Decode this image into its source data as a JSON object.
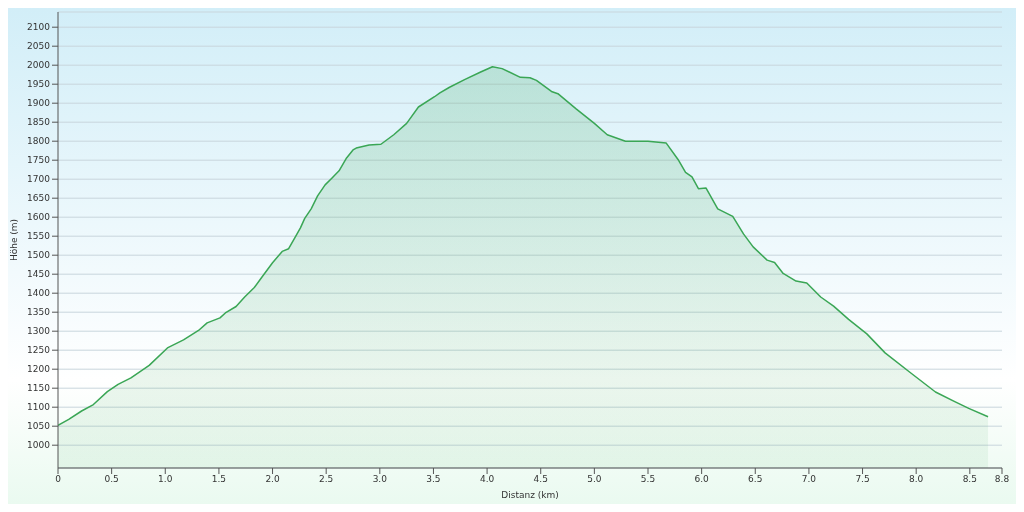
{
  "chart_data": {
    "type": "area",
    "xlabel": "Distanz  (km)",
    "ylabel": "Höhe (m)",
    "x": [
      0,
      0.1,
      0.22,
      0.33,
      0.46,
      0.56,
      0.68,
      0.85,
      1.02,
      1.17,
      1.31,
      1.39,
      1.51,
      1.56,
      1.66,
      1.74,
      1.83,
      1.9,
      2.0,
      2.09,
      2.15,
      2.21,
      2.26,
      2.3,
      2.36,
      2.42,
      2.49,
      2.55,
      2.62,
      2.69,
      2.75,
      2.78,
      2.9,
      3.01,
      3.13,
      3.25,
      3.36,
      3.51,
      3.56,
      3.65,
      3.79,
      3.94,
      4.05,
      4.14,
      4.31,
      4.4,
      4.46,
      4.6,
      4.66,
      4.83,
      5.0,
      5.12,
      5.29,
      5.5,
      5.67,
      5.78,
      5.85,
      5.91,
      5.97,
      6.04,
      6.15,
      6.29,
      6.39,
      6.48,
      6.61,
      6.68,
      6.76,
      6.88,
      6.98,
      7.11,
      7.23,
      7.37,
      7.54,
      7.71,
      7.95,
      8.18,
      8.35,
      8.49,
      8.67
    ],
    "series": [
      {
        "color": "#3aa655",
        "values": [
          1052,
          1068,
          1090,
          1107,
          1141,
          1160,
          1177,
          1210,
          1256,
          1277,
          1302,
          1322,
          1335,
          1348,
          1365,
          1390,
          1415,
          1442,
          1480,
          1510,
          1517,
          1547,
          1572,
          1597,
          1622,
          1656,
          1685,
          1702,
          1722,
          1756,
          1777,
          1782,
          1790,
          1792,
          1817,
          1847,
          1890,
          1917,
          1927,
          1942,
          1962,
          1982,
          1996,
          1991,
          1968,
          1967,
          1960,
          1931,
          1925,
          1885,
          1847,
          1817,
          1800,
          1800,
          1795,
          1752,
          1718,
          1706,
          1675,
          1677,
          1622,
          1602,
          1556,
          1522,
          1487,
          1481,
          1452,
          1432,
          1427,
          1390,
          1366,
          1331,
          1293,
          1243,
          1190,
          1140,
          1116,
          1097,
          1075
        ]
      }
    ],
    "xlim": [
      0,
      8.8
    ],
    "xticks": [
      0,
      {
        "value": 0.5,
        "label": "0.5"
      },
      {
        "value": 1,
        "label": "1.0"
      },
      {
        "value": 1.5,
        "label": "1.5"
      },
      {
        "value": 2,
        "label": "2.0"
      },
      {
        "value": 2.5,
        "label": "2.5"
      },
      {
        "value": 3,
        "label": "3.0"
      },
      {
        "value": 3.5,
        "label": "3.5"
      },
      {
        "value": 4,
        "label": "4.0"
      },
      {
        "value": 4.5,
        "label": "4.5"
      },
      {
        "value": 5,
        "label": "5.0"
      },
      {
        "value": 5.5,
        "label": "5.5"
      },
      {
        "value": 6,
        "label": "6.0"
      },
      {
        "value": 6.5,
        "label": "6.5"
      },
      {
        "value": 7,
        "label": "7.0"
      },
      {
        "value": 7.5,
        "label": "7.5"
      },
      {
        "value": 8,
        "label": "8.0"
      },
      {
        "value": 8.5,
        "label": "8.5"
      },
      8.8
    ],
    "ylim": [
      940,
      2140
    ],
    "yticks": [
      1000,
      1050,
      1100,
      1150,
      1200,
      1250,
      1300,
      1350,
      1400,
      1450,
      1500,
      1550,
      1600,
      1650,
      1700,
      1750,
      1800,
      1850,
      1900,
      1950,
      2000,
      2050,
      2100
    ],
    "grid": "y",
    "marker": "none",
    "line_style": "solid",
    "legend": false
  }
}
